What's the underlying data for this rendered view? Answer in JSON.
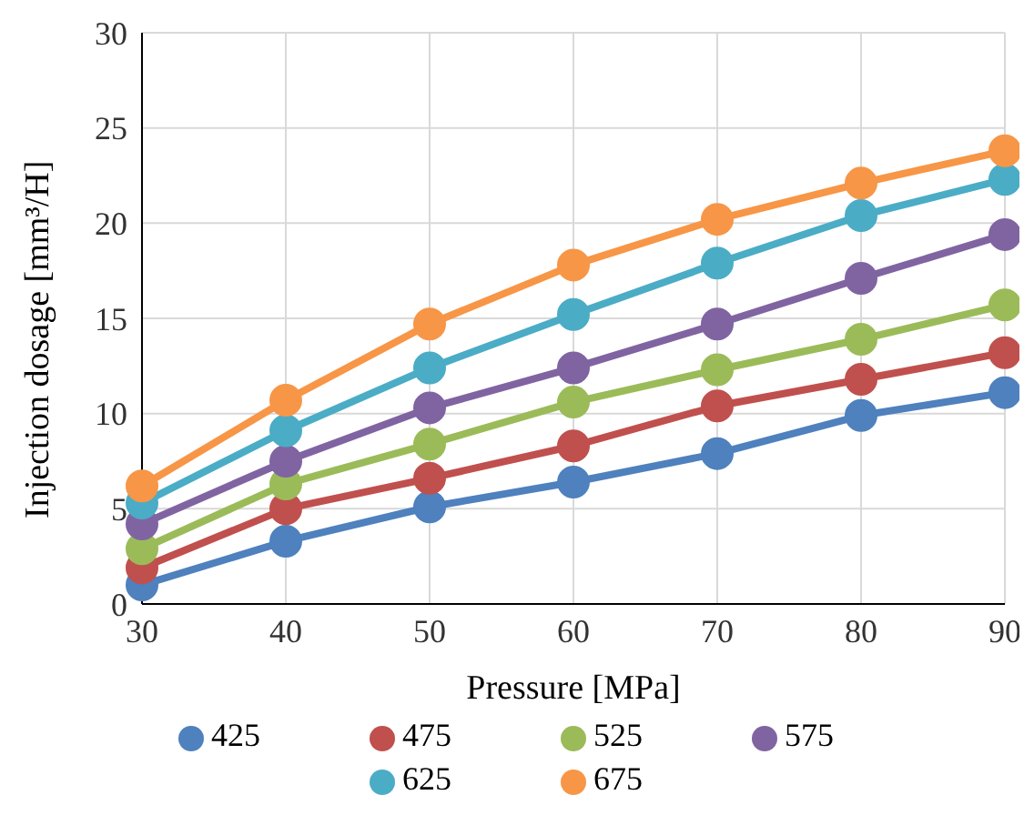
{
  "chart_data": {
    "type": "line",
    "xlabel": "Pressure [MPa]",
    "ylabel": "Injection dosage [mm³/H]",
    "categories": [
      "30",
      "40",
      "50",
      "60",
      "70",
      "80",
      "90"
    ],
    "series": [
      {
        "name": "425",
        "color": "#4e81bd",
        "values": [
          1.0,
          3.3,
          5.1,
          6.4,
          7.9,
          9.9,
          11.1
        ]
      },
      {
        "name": "475",
        "color": "#c0504d",
        "values": [
          1.9,
          5.0,
          6.6,
          8.3,
          10.4,
          11.8,
          13.2
        ]
      },
      {
        "name": "525",
        "color": "#9bbb59",
        "values": [
          2.9,
          6.3,
          8.4,
          10.6,
          12.3,
          13.9,
          15.7
        ]
      },
      {
        "name": "575",
        "color": "#8064a2",
        "values": [
          4.2,
          7.5,
          10.3,
          12.4,
          14.7,
          17.1,
          19.4
        ]
      },
      {
        "name": "625",
        "color": "#4bacc6",
        "values": [
          5.3,
          9.1,
          12.4,
          15.2,
          17.9,
          20.4,
          22.3
        ]
      },
      {
        "name": "675",
        "color": "#f79646",
        "values": [
          6.2,
          10.7,
          14.7,
          17.8,
          20.2,
          22.1,
          23.8
        ]
      }
    ],
    "ylim": [
      0,
      30
    ],
    "yticks": [
      0,
      5,
      10,
      15,
      20,
      25,
      30
    ],
    "grid": true,
    "legend": "bottom",
    "marker": "circle",
    "line_style": "solid"
  }
}
